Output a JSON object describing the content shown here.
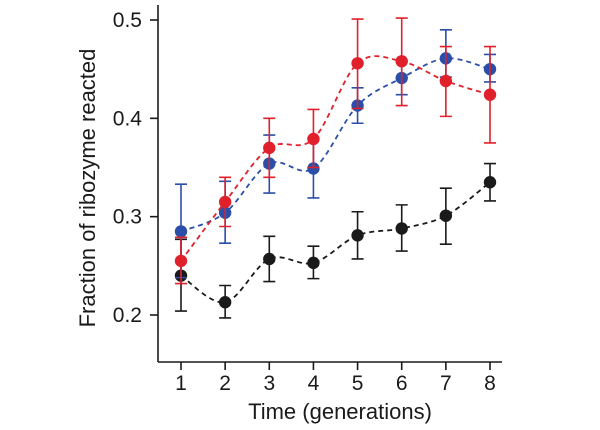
{
  "chart_data": {
    "type": "line",
    "title": "",
    "xlabel": "Time (generations)",
    "ylabel": "Fraction of ribozyme reacted",
    "x": [
      1,
      2,
      3,
      4,
      5,
      6,
      7,
      8
    ],
    "xticks": [
      "1",
      "2",
      "3",
      "4",
      "5",
      "6",
      "7",
      "8"
    ],
    "yticks": [
      "0.2",
      "0.3",
      "0.4",
      "0.5"
    ],
    "ytick_values": [
      0.2,
      0.3,
      0.4,
      0.5
    ],
    "xlim": [
      0.5,
      8.3
    ],
    "ylim": [
      0.15,
      0.5
    ],
    "grid": false,
    "series": [
      {
        "name": "black",
        "color": "#1a1a1a",
        "values": [
          0.24,
          0.213,
          0.257,
          0.253,
          0.281,
          0.288,
          0.301,
          0.335
        ],
        "err_low": [
          0.204,
          0.197,
          0.234,
          0.237,
          0.257,
          0.265,
          0.272,
          0.316
        ],
        "err_high": [
          0.277,
          0.23,
          0.28,
          0.27,
          0.305,
          0.312,
          0.329,
          0.354
        ]
      },
      {
        "name": "blue",
        "color": "#2b4fa8",
        "values": [
          0.285,
          0.304,
          0.354,
          0.349,
          0.413,
          0.441,
          0.461,
          0.45
        ],
        "err_low": [
          0.238,
          0.273,
          0.324,
          0.319,
          0.395,
          0.424,
          0.442,
          0.437
        ],
        "err_high": [
          0.333,
          0.336,
          0.383,
          0.38,
          0.431,
          0.458,
          0.49,
          0.465
        ]
      },
      {
        "name": "red",
        "color": "#e0202a",
        "values": [
          0.255,
          0.315,
          0.37,
          0.379,
          0.456,
          0.458,
          0.438,
          0.424
        ],
        "err_low": [
          0.232,
          0.29,
          0.34,
          0.35,
          0.41,
          0.413,
          0.402,
          0.375
        ],
        "err_high": [
          0.279,
          0.34,
          0.4,
          0.409,
          0.501,
          0.502,
          0.473,
          0.473
        ]
      }
    ]
  }
}
